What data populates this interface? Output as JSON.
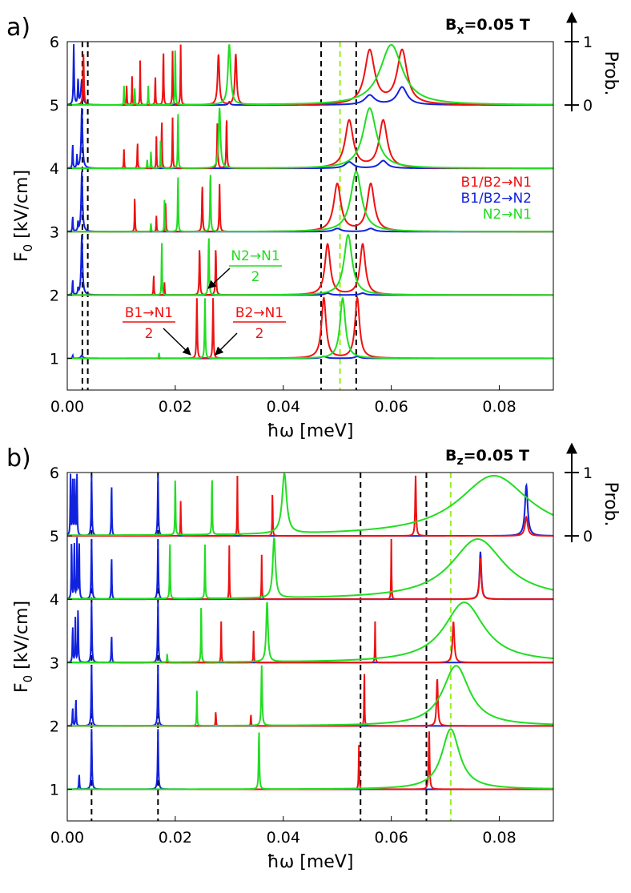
{
  "colors": {
    "red": "#ee1111",
    "blue": "#1122dd",
    "green": "#22dd22",
    "lime": "#99ee22",
    "black": "#000000"
  },
  "panels": [
    {
      "id": "a",
      "label": "a)",
      "field_label": "B",
      "field_sub": "x",
      "field_value": "=0.05 T",
      "prob_label": "Prob.",
      "prob_ticks": [
        "0",
        "1"
      ],
      "xlabel": "ħω [meV]",
      "ylabel": "F",
      "ylabel_sub": "0",
      "ylabel_unit": " [kV/cm]",
      "xlim": [
        0,
        0.09
      ],
      "ylim": [
        0.5,
        6
      ],
      "xticks": [
        "0.00",
        "0.02",
        "0.04",
        "0.06",
        "0.08"
      ],
      "yticks": [
        "1",
        "2",
        "3",
        "4",
        "5",
        "6"
      ],
      "black_dashed": [
        0.0028,
        0.0038,
        0.047,
        0.0535
      ],
      "lime_dashed": [
        0.0505
      ],
      "legend": [
        "B1/B2→N1",
        "B1/B2→N2",
        "N2→N1"
      ],
      "annotations": {
        "b1n1_num": "B1→N1",
        "b1n1_den": "2",
        "b2n1_num": "B2→N1",
        "b2n1_den": "2",
        "n2n1_num": "N2→N1",
        "n2n1_den": "2"
      }
    },
    {
      "id": "b",
      "label": "b)",
      "field_label": "B",
      "field_sub": "z",
      "field_value": "=0.05 T",
      "prob_label": "Prob.",
      "prob_ticks": [
        "0",
        "1"
      ],
      "xlabel": "ħω [meV]",
      "ylabel": "F",
      "ylabel_sub": "0",
      "ylabel_unit": " [kV/cm]",
      "xlim": [
        0,
        0.09
      ],
      "ylim": [
        0.5,
        6
      ],
      "xticks": [
        "0.00",
        "0.02",
        "0.04",
        "0.06",
        "0.08"
      ],
      "yticks": [
        "1",
        "2",
        "3",
        "4",
        "5",
        "6"
      ],
      "black_dashed": [
        0.0045,
        0.0168,
        0.0543,
        0.0665
      ],
      "lime_dashed": [
        0.071
      ]
    }
  ],
  "chart_data": [
    {
      "type": "line",
      "title": "Bx=0.05 T",
      "xlabel": "ħω [meV]",
      "ylabel": "F0 [kV/cm]",
      "xlim": [
        0,
        0.09
      ],
      "ylim": [
        0.5,
        6
      ],
      "baselines": [
        1,
        2,
        3,
        4,
        5
      ],
      "series": [
        {
          "name": "B1/B2→N1",
          "color": "red",
          "peaks": [
            [
              1,
              0.024,
              0.95,
              8e-05
            ],
            [
              1,
              0.027,
              0.95,
              8e-05
            ],
            [
              1,
              0.0475,
              0.95,
              0.0005
            ],
            [
              1,
              0.0537,
              0.95,
              0.0005
            ],
            [
              2,
              0.016,
              0.35,
              5e-05
            ],
            [
              2,
              0.018,
              0.2,
              5e-05
            ],
            [
              2,
              0.0245,
              0.75,
              8e-05
            ],
            [
              2,
              0.0275,
              0.75,
              8e-05
            ],
            [
              2,
              0.0482,
              0.8,
              0.0006
            ],
            [
              2,
              0.0547,
              0.8,
              0.0006
            ],
            [
              3,
              0.0125,
              0.6,
              5e-05
            ],
            [
              3,
              0.0165,
              0.25,
              5e-05
            ],
            [
              3,
              0.0182,
              0.5,
              6e-05
            ],
            [
              3,
              0.025,
              0.75,
              8e-05
            ],
            [
              3,
              0.0282,
              0.75,
              8e-05
            ],
            [
              3,
              0.05,
              0.75,
              0.0008
            ],
            [
              3,
              0.0562,
              0.75,
              0.0008
            ],
            [
              4,
              0.0105,
              0.3,
              5e-05
            ],
            [
              4,
              0.013,
              0.45,
              5e-05
            ],
            [
              4,
              0.0165,
              0.5,
              5e-05
            ],
            [
              4,
              0.0175,
              0.8,
              6e-05
            ],
            [
              4,
              0.0195,
              0.8,
              6e-05
            ],
            [
              4,
              0.0278,
              0.75,
              8e-05
            ],
            [
              4,
              0.0295,
              0.8,
              8e-05
            ],
            [
              4,
              0.0522,
              0.75,
              0.0009
            ],
            [
              4,
              0.0585,
              0.75,
              0.0009
            ],
            [
              5,
              0.003,
              0.8,
              0.0001
            ],
            [
              5,
              0.011,
              0.35,
              5e-05
            ],
            [
              5,
              0.012,
              0.45,
              5e-05
            ],
            [
              5,
              0.0135,
              0.7,
              5e-05
            ],
            [
              5,
              0.0163,
              0.5,
              5e-05
            ],
            [
              5,
              0.0178,
              0.9,
              6e-05
            ],
            [
              5,
              0.0195,
              0.85,
              6e-05
            ],
            [
              5,
              0.021,
              0.95,
              6e-05
            ],
            [
              5,
              0.028,
              0.8,
              0.0002
            ],
            [
              5,
              0.0312,
              0.8,
              0.0002
            ],
            [
              5,
              0.056,
              0.85,
              0.0011
            ],
            [
              5,
              0.062,
              0.85,
              0.0011
            ]
          ]
        },
        {
          "name": "B1/B2→N2",
          "color": "blue",
          "peaks": [
            [
              1,
              0.001,
              0.05,
              6e-05
            ],
            [
              1,
              0.0027,
              0.05,
              0.0002
            ],
            [
              1,
              0.0475,
              0.03,
              0.0006
            ],
            [
              1,
              0.0537,
              0.03,
              0.0006
            ],
            [
              2,
              0.001,
              0.25,
              6e-05
            ],
            [
              2,
              0.002,
              0.1,
              6e-05
            ],
            [
              2,
              0.0027,
              0.95,
              0.00015
            ],
            [
              2,
              0.0482,
              0.03,
              0.0006
            ],
            [
              2,
              0.0547,
              0.03,
              0.0006
            ],
            [
              3,
              0.001,
              0.25,
              6e-05
            ],
            [
              3,
              0.002,
              0.15,
              6e-05
            ],
            [
              3,
              0.0027,
              0.95,
              0.00015
            ],
            [
              3,
              0.05,
              0.05,
              0.0008
            ],
            [
              3,
              0.0562,
              0.05,
              0.0008
            ],
            [
              4,
              0.001,
              0.4,
              6e-05
            ],
            [
              4,
              0.0018,
              0.2,
              6e-05
            ],
            [
              4,
              0.0027,
              0.95,
              0.00015
            ],
            [
              4,
              0.0522,
              0.1,
              0.0009
            ],
            [
              4,
              0.0585,
              0.12,
              0.0009
            ],
            [
              5,
              0.0012,
              0.95,
              8e-05
            ],
            [
              5,
              0.002,
              0.4,
              8e-05
            ],
            [
              5,
              0.0027,
              0.4,
              0.0002
            ],
            [
              5,
              0.03,
              0.05,
              0.0002
            ],
            [
              5,
              0.056,
              0.15,
              0.0011
            ],
            [
              5,
              0.062,
              0.28,
              0.0011
            ]
          ]
        },
        {
          "name": "N2→N1",
          "color": "green",
          "peaks": [
            [
              1,
              0.017,
              0.1,
              5e-05
            ],
            [
              1,
              0.0255,
              0.95,
              8e-05
            ],
            [
              1,
              0.051,
              0.95,
              0.0006
            ],
            [
              2,
              0.0175,
              0.95,
              5e-05
            ],
            [
              2,
              0.0262,
              0.95,
              8e-05
            ],
            [
              2,
              0.052,
              0.95,
              0.0009
            ],
            [
              3,
              0.0155,
              0.15,
              5e-05
            ],
            [
              3,
              0.018,
              0.5,
              5e-05
            ],
            [
              3,
              0.0205,
              0.95,
              6e-05
            ],
            [
              3,
              0.0265,
              0.95,
              8e-05
            ],
            [
              3,
              0.0535,
              0.95,
              0.0012
            ],
            [
              4,
              0.0148,
              0.15,
              5e-05
            ],
            [
              4,
              0.0155,
              0.3,
              5e-05
            ],
            [
              4,
              0.0173,
              0.5,
              5e-05
            ],
            [
              4,
              0.0205,
              0.95,
              6e-05
            ],
            [
              4,
              0.0282,
              0.95,
              0.0002
            ],
            [
              4,
              0.056,
              0.95,
              0.0015
            ],
            [
              5,
              0.0105,
              0.3,
              5e-05
            ],
            [
              5,
              0.0125,
              0.3,
              5e-05
            ],
            [
              5,
              0.015,
              0.3,
              5e-05
            ],
            [
              5,
              0.02,
              0.95,
              6e-05
            ],
            [
              5,
              0.03,
              0.95,
              0.0003
            ],
            [
              5,
              0.06,
              0.95,
              0.0025
            ]
          ]
        }
      ]
    },
    {
      "type": "line",
      "title": "Bz=0.05 T",
      "xlabel": "ħω [meV]",
      "ylabel": "F0 [kV/cm]",
      "xlim": [
        0,
        0.09
      ],
      "ylim": [
        0.5,
        6
      ],
      "baselines": [
        1,
        2,
        3,
        4,
        5
      ],
      "series": [
        {
          "name": "B1/B2→N1",
          "color": "red",
          "peaks": [
            [
              1,
              0.054,
              0.7,
              6e-05
            ],
            [
              1,
              0.067,
              0.95,
              0.0001
            ],
            [
              2,
              0.0275,
              0.25,
              5e-05
            ],
            [
              2,
              0.034,
              0.2,
              5e-05
            ],
            [
              2,
              0.055,
              0.95,
              5e-05
            ],
            [
              2,
              0.0685,
              0.75,
              0.00015
            ],
            [
              3,
              0.0285,
              0.65,
              5e-05
            ],
            [
              3,
              0.0345,
              0.5,
              5e-05
            ],
            [
              3,
              0.057,
              0.65,
              5e-05
            ],
            [
              3,
              0.0715,
              0.65,
              0.0002
            ],
            [
              4,
              0.03,
              0.85,
              5e-05
            ],
            [
              4,
              0.036,
              0.7,
              5e-05
            ],
            [
              4,
              0.06,
              0.95,
              5e-05
            ],
            [
              4,
              0.0765,
              0.65,
              0.0002
            ],
            [
              5,
              0.021,
              0.55,
              5e-05
            ],
            [
              5,
              0.0315,
              0.95,
              5e-05
            ],
            [
              5,
              0.038,
              0.75,
              5e-05
            ],
            [
              5,
              0.0645,
              0.95,
              0.0001
            ],
            [
              5,
              0.085,
              0.3,
              0.0003
            ]
          ]
        },
        {
          "name": "B1/B2→N2",
          "color": "blue",
          "peaks": [
            [
              1,
              0.0022,
              0.25,
              6e-05
            ],
            [
              1,
              0.0045,
              0.95,
              8e-05
            ],
            [
              1,
              0.0168,
              0.95,
              8e-05
            ],
            [
              2,
              0.001,
              0.3,
              6e-05
            ],
            [
              2,
              0.0016,
              0.45,
              6e-05
            ],
            [
              2,
              0.0045,
              0.95,
              8e-05
            ],
            [
              2,
              0.0168,
              0.95,
              8e-05
            ],
            [
              3,
              0.001,
              0.6,
              6e-05
            ],
            [
              3,
              0.0015,
              0.7,
              6e-05
            ],
            [
              3,
              0.002,
              0.9,
              6e-05
            ],
            [
              3,
              0.0045,
              0.95,
              8e-05
            ],
            [
              3,
              0.0082,
              0.45,
              6e-05
            ],
            [
              3,
              0.0168,
              0.95,
              8e-05
            ],
            [
              4,
              0.0008,
              0.95,
              6e-05
            ],
            [
              4,
              0.0013,
              0.95,
              6e-05
            ],
            [
              4,
              0.0018,
              0.95,
              6e-05
            ],
            [
              4,
              0.0022,
              0.95,
              6e-05
            ],
            [
              4,
              0.0045,
              0.95,
              8e-05
            ],
            [
              4,
              0.0082,
              0.7,
              6e-05
            ],
            [
              4,
              0.0168,
              0.95,
              8e-05
            ],
            [
              4,
              0.0765,
              0.75,
              0.0002
            ],
            [
              5,
              0.0006,
              0.95,
              6e-05
            ],
            [
              5,
              0.001,
              0.95,
              6e-05
            ],
            [
              5,
              0.0014,
              0.95,
              6e-05
            ],
            [
              5,
              0.0018,
              0.95,
              6e-05
            ],
            [
              5,
              0.0045,
              0.95,
              8e-05
            ],
            [
              5,
              0.0082,
              0.85,
              6e-05
            ],
            [
              5,
              0.0168,
              0.95,
              8e-05
            ],
            [
              5,
              0.085,
              0.8,
              0.0003
            ]
          ]
        },
        {
          "name": "N2→N1",
          "color": "green",
          "peaks": [
            [
              1,
              0.0355,
              0.95,
              8e-05
            ],
            [
              1,
              0.071,
              0.95,
              0.002
            ],
            [
              2,
              0.024,
              0.55,
              5e-05
            ],
            [
              2,
              0.036,
              0.95,
              0.0001
            ],
            [
              2,
              0.072,
              0.95,
              0.003
            ],
            [
              3,
              0.0185,
              0.15,
              5e-05
            ],
            [
              3,
              0.0248,
              0.95,
              6e-05
            ],
            [
              3,
              0.037,
              0.95,
              0.0002
            ],
            [
              3,
              0.0735,
              0.95,
              0.0045
            ],
            [
              4,
              0.019,
              0.95,
              6e-05
            ],
            [
              4,
              0.0255,
              0.85,
              6e-05
            ],
            [
              4,
              0.0383,
              0.95,
              0.0003
            ],
            [
              4,
              0.076,
              0.95,
              0.006
            ],
            [
              5,
              0.02,
              0.95,
              6e-05
            ],
            [
              5,
              0.0268,
              0.95,
              6e-05
            ],
            [
              5,
              0.0402,
              0.95,
              0.0005
            ],
            [
              5,
              0.079,
              0.95,
              0.008
            ]
          ]
        }
      ]
    }
  ]
}
